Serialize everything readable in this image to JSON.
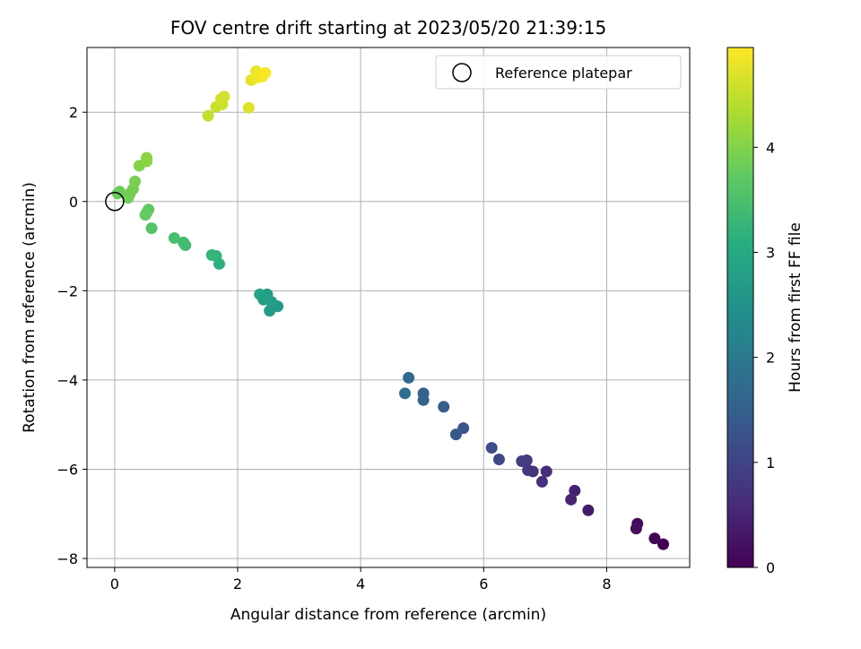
{
  "chart_data": {
    "type": "scatter",
    "title": "FOV centre drift starting at 2023/05/20 21:39:15",
    "xlabel": "Angular distance from reference (arcmin)",
    "ylabel": "Rotation from reference (arcmin)",
    "xlim": [
      -0.45,
      9.35
    ],
    "ylim": [
      -8.2,
      3.45
    ],
    "x_ticks": [
      0,
      2,
      4,
      6,
      8
    ],
    "y_ticks": [
      -8,
      -6,
      -4,
      -2,
      0,
      2
    ],
    "grid": true,
    "legend": {
      "placement": "upper-right",
      "entries": [
        "Reference platepar"
      ]
    },
    "reference_point": {
      "x": 0,
      "y": 0
    },
    "colorbar": {
      "label": "Hours from first FF file",
      "colormap": "viridis",
      "range": [
        0,
        4.95
      ],
      "ticks": [
        0,
        1,
        2,
        3,
        4
      ]
    },
    "points": [
      {
        "x": 8.92,
        "y": -7.68,
        "c": 0.0
      },
      {
        "x": 8.78,
        "y": -7.55,
        "c": 0.05
      },
      {
        "x": 8.5,
        "y": -7.22,
        "c": 0.12
      },
      {
        "x": 8.48,
        "y": -7.33,
        "c": 0.18
      },
      {
        "x": 7.7,
        "y": -6.92,
        "c": 0.35
      },
      {
        "x": 7.48,
        "y": -6.48,
        "c": 0.45
      },
      {
        "x": 7.42,
        "y": -6.68,
        "c": 0.5
      },
      {
        "x": 7.02,
        "y": -6.05,
        "c": 0.6
      },
      {
        "x": 6.95,
        "y": -6.28,
        "c": 0.65
      },
      {
        "x": 6.8,
        "y": -6.05,
        "c": 0.72
      },
      {
        "x": 6.72,
        "y": -6.02,
        "c": 0.78
      },
      {
        "x": 6.7,
        "y": -5.8,
        "c": 0.85
      },
      {
        "x": 6.62,
        "y": -5.82,
        "c": 0.9
      },
      {
        "x": 6.25,
        "y": -5.78,
        "c": 1.05
      },
      {
        "x": 6.13,
        "y": -5.52,
        "c": 1.15
      },
      {
        "x": 5.67,
        "y": -5.08,
        "c": 1.3
      },
      {
        "x": 5.55,
        "y": -5.22,
        "c": 1.35
      },
      {
        "x": 5.35,
        "y": -4.6,
        "c": 1.45
      },
      {
        "x": 5.02,
        "y": -4.3,
        "c": 1.55
      },
      {
        "x": 5.02,
        "y": -4.45,
        "c": 1.6
      },
      {
        "x": 4.78,
        "y": -3.95,
        "c": 1.7
      },
      {
        "x": 4.72,
        "y": -4.3,
        "c": 1.75
      },
      {
        "x": 2.65,
        "y": -2.35,
        "c": 2.65
      },
      {
        "x": 2.55,
        "y": -2.25,
        "c": 2.7
      },
      {
        "x": 2.52,
        "y": -2.45,
        "c": 2.72
      },
      {
        "x": 2.48,
        "y": -2.08,
        "c": 2.75
      },
      {
        "x": 2.42,
        "y": -2.2,
        "c": 2.78
      },
      {
        "x": 2.36,
        "y": -2.08,
        "c": 2.82
      },
      {
        "x": 1.7,
        "y": -1.4,
        "c": 3.15
      },
      {
        "x": 1.65,
        "y": -1.22,
        "c": 3.2
      },
      {
        "x": 1.58,
        "y": -1.2,
        "c": 3.25
      },
      {
        "x": 1.15,
        "y": -0.98,
        "c": 3.4
      },
      {
        "x": 1.12,
        "y": -0.92,
        "c": 3.42
      },
      {
        "x": 0.97,
        "y": -0.82,
        "c": 3.48
      },
      {
        "x": 0.6,
        "y": -0.6,
        "c": 3.6
      },
      {
        "x": 0.55,
        "y": -0.18,
        "c": 3.7
      },
      {
        "x": 0.5,
        "y": -0.3,
        "c": 3.72
      },
      {
        "x": 0.52,
        "y": -0.25,
        "c": 3.74
      },
      {
        "x": 0.08,
        "y": 0.22,
        "c": 3.8
      },
      {
        "x": 0.05,
        "y": 0.18,
        "c": 3.82
      },
      {
        "x": 0.22,
        "y": 0.08,
        "c": 3.85
      },
      {
        "x": 0.25,
        "y": 0.18,
        "c": 3.87
      },
      {
        "x": 0.3,
        "y": 0.28,
        "c": 3.89
      },
      {
        "x": 0.33,
        "y": 0.45,
        "c": 3.92
      },
      {
        "x": 0.4,
        "y": 0.8,
        "c": 4.0
      },
      {
        "x": 0.52,
        "y": 0.9,
        "c": 4.05
      },
      {
        "x": 0.52,
        "y": 0.98,
        "c": 4.08
      },
      {
        "x": 1.52,
        "y": 1.92,
        "c": 4.5
      },
      {
        "x": 1.65,
        "y": 2.12,
        "c": 4.55
      },
      {
        "x": 1.75,
        "y": 2.18,
        "c": 4.58
      },
      {
        "x": 1.73,
        "y": 2.3,
        "c": 4.6
      },
      {
        "x": 1.78,
        "y": 2.35,
        "c": 4.62
      },
      {
        "x": 2.18,
        "y": 2.1,
        "c": 4.7
      },
      {
        "x": 2.22,
        "y": 2.72,
        "c": 4.78
      },
      {
        "x": 2.3,
        "y": 2.92,
        "c": 4.82
      },
      {
        "x": 2.33,
        "y": 2.78,
        "c": 4.85
      },
      {
        "x": 2.4,
        "y": 2.8,
        "c": 4.88
      },
      {
        "x": 2.45,
        "y": 2.88,
        "c": 4.92
      }
    ]
  }
}
